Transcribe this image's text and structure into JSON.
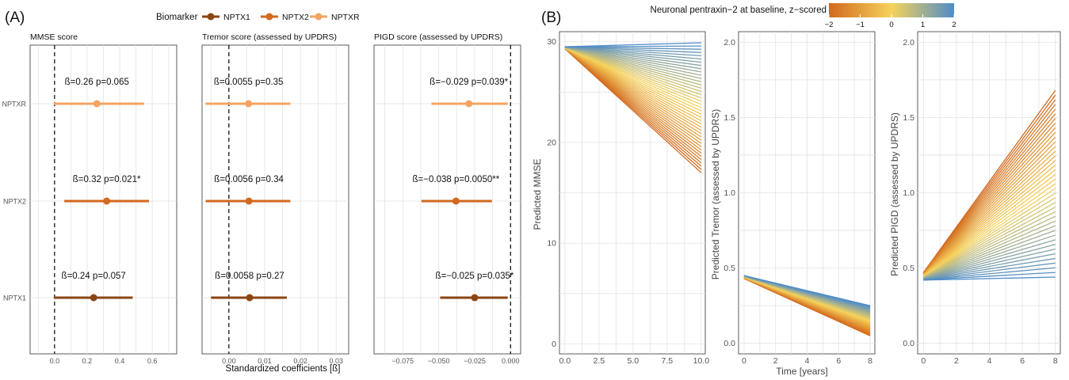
{
  "panel_a": {
    "tag": "(A)",
    "legend": {
      "title": "Biomarker",
      "items": [
        "NPTX1",
        "NPTX2",
        "NPTXR"
      ],
      "colors": [
        "#8B4513",
        "#D2691E",
        "#F4A460"
      ]
    },
    "xlabel": "Standardized coefficients [ß]"
  },
  "panel_b": {
    "tag": "(B)",
    "colorbar": {
      "title": "Neuronal pentraxin−2 at baseline, z−scored",
      "ticks": [
        "−2",
        "−1",
        "0",
        "1",
        "2"
      ],
      "colors": [
        "#D2691E",
        "#F6D35B",
        "#4F8CC9"
      ]
    },
    "xlabel": "Time [years]"
  },
  "chart_data": [
    {
      "type": "scatter",
      "title": "MMSE score",
      "categories": [
        "NPTXR",
        "NPTX2",
        "NPTX1"
      ],
      "xlim": [
        -0.15,
        0.75
      ],
      "xticks": [
        "0.0",
        "0.2",
        "0.4",
        "0.6"
      ],
      "xtick_values": [
        0.0,
        0.2,
        0.4,
        0.6
      ],
      "estimates": [
        0.26,
        0.32,
        0.24
      ],
      "ci_low": [
        -0.005,
        0.06,
        -0.005
      ],
      "ci_high": [
        0.55,
        0.58,
        0.48
      ],
      "labels": [
        "ß=0.26 p=0.065",
        "ß=0.32 p=0.021*",
        "ß=0.24 p=0.057"
      ],
      "colors": [
        "#F4A460",
        "#D2691E",
        "#8B4513"
      ]
    },
    {
      "type": "scatter",
      "title": "Tremor score (assessed by UPDRS)",
      "categories": [
        "NPTXR",
        "NPTX2",
        "NPTX1"
      ],
      "xlim": [
        -0.0075,
        0.0335
      ],
      "xticks": [
        "0.00",
        "0.01",
        "0.02",
        "0.03"
      ],
      "xtick_values": [
        0.0,
        0.01,
        0.02,
        0.03
      ],
      "estimates": [
        0.0055,
        0.0056,
        0.0058
      ],
      "ci_low": [
        -0.0065,
        -0.0065,
        -0.005
      ],
      "ci_high": [
        0.0172,
        0.0172,
        0.0162
      ],
      "labels": [
        "ß=0.0055 p=0.35",
        "ß=0.0056 p=0.34",
        "ß=0.0058 p=0.27"
      ],
      "colors": [
        "#F4A460",
        "#D2691E",
        "#8B4513"
      ]
    },
    {
      "type": "scatter",
      "title": "PIGD score (assessed by UPDRS)",
      "categories": [
        "NPTXR",
        "NPTX2",
        "NPTX1"
      ],
      "xlim": [
        -0.095,
        0.007
      ],
      "xticks": [
        "−0.075",
        "−0.050",
        "−0.025",
        "0.000"
      ],
      "xtick_values": [
        -0.075,
        -0.05,
        -0.025,
        0.0
      ],
      "estimates": [
        -0.029,
        -0.038,
        -0.025
      ],
      "ci_low": [
        -0.055,
        -0.062,
        -0.049
      ],
      "ci_high": [
        -0.002,
        -0.013,
        -0.002
      ],
      "labels": [
        "ß=−0.029 p=0.039*",
        "ß=−0.038 p=0.0050**",
        "ß=−0.025 p=0.035*"
      ],
      "colors": [
        "#F4A460",
        "#D2691E",
        "#8B4513"
      ]
    },
    {
      "type": "line",
      "ylabel": "Predicted MMSE",
      "xlim": [
        -0.4,
        10.3
      ],
      "ylim": [
        -1,
        31
      ],
      "xticks": [
        "0.0",
        "2.5",
        "5.0",
        "7.5",
        "10.0"
      ],
      "xtick_values": [
        0,
        2.5,
        5,
        7.5,
        10
      ],
      "yticks": [
        "0",
        "10",
        "20",
        "30"
      ],
      "ytick_values": [
        0,
        10,
        20,
        30
      ],
      "x_end": 10,
      "z_values": [
        -2,
        2
      ],
      "start": [
        29.3,
        29.5
      ],
      "end": [
        17.0,
        29.9
      ]
    },
    {
      "type": "line",
      "ylabel": "Predicted Tremor (assessed by UPDRS)",
      "xlim": [
        -0.35,
        8.3
      ],
      "ylim": [
        -0.07,
        2.07
      ],
      "xticks": [
        "0",
        "2",
        "4",
        "6",
        "8"
      ],
      "xtick_values": [
        0,
        2,
        4,
        6,
        8
      ],
      "yticks": [
        "0.0",
        "0.5",
        "1.0",
        "1.5",
        "2.0"
      ],
      "ytick_values": [
        0,
        0.5,
        1.0,
        1.5,
        2.0
      ],
      "x_end": 8,
      "z_values": [
        -2,
        2
      ],
      "start": [
        0.43,
        0.45
      ],
      "end": [
        0.05,
        0.25
      ]
    },
    {
      "type": "line",
      "ylabel": "Predicted PIGD (assessed by UPDRS)",
      "xlim": [
        -0.35,
        8.3
      ],
      "ylim": [
        -0.07,
        2.07
      ],
      "xticks": [
        "0",
        "2",
        "4",
        "6",
        "8"
      ],
      "xtick_values": [
        0,
        2,
        4,
        6,
        8
      ],
      "yticks": [
        "0.0",
        "0.5",
        "1.0",
        "1.5",
        "2.0"
      ],
      "ytick_values": [
        0,
        0.5,
        1.0,
        1.5,
        2.0
      ],
      "x_end": 8,
      "z_values": [
        -2,
        2
      ],
      "start": [
        0.47,
        0.42
      ],
      "end": [
        1.68,
        0.44
      ]
    }
  ]
}
